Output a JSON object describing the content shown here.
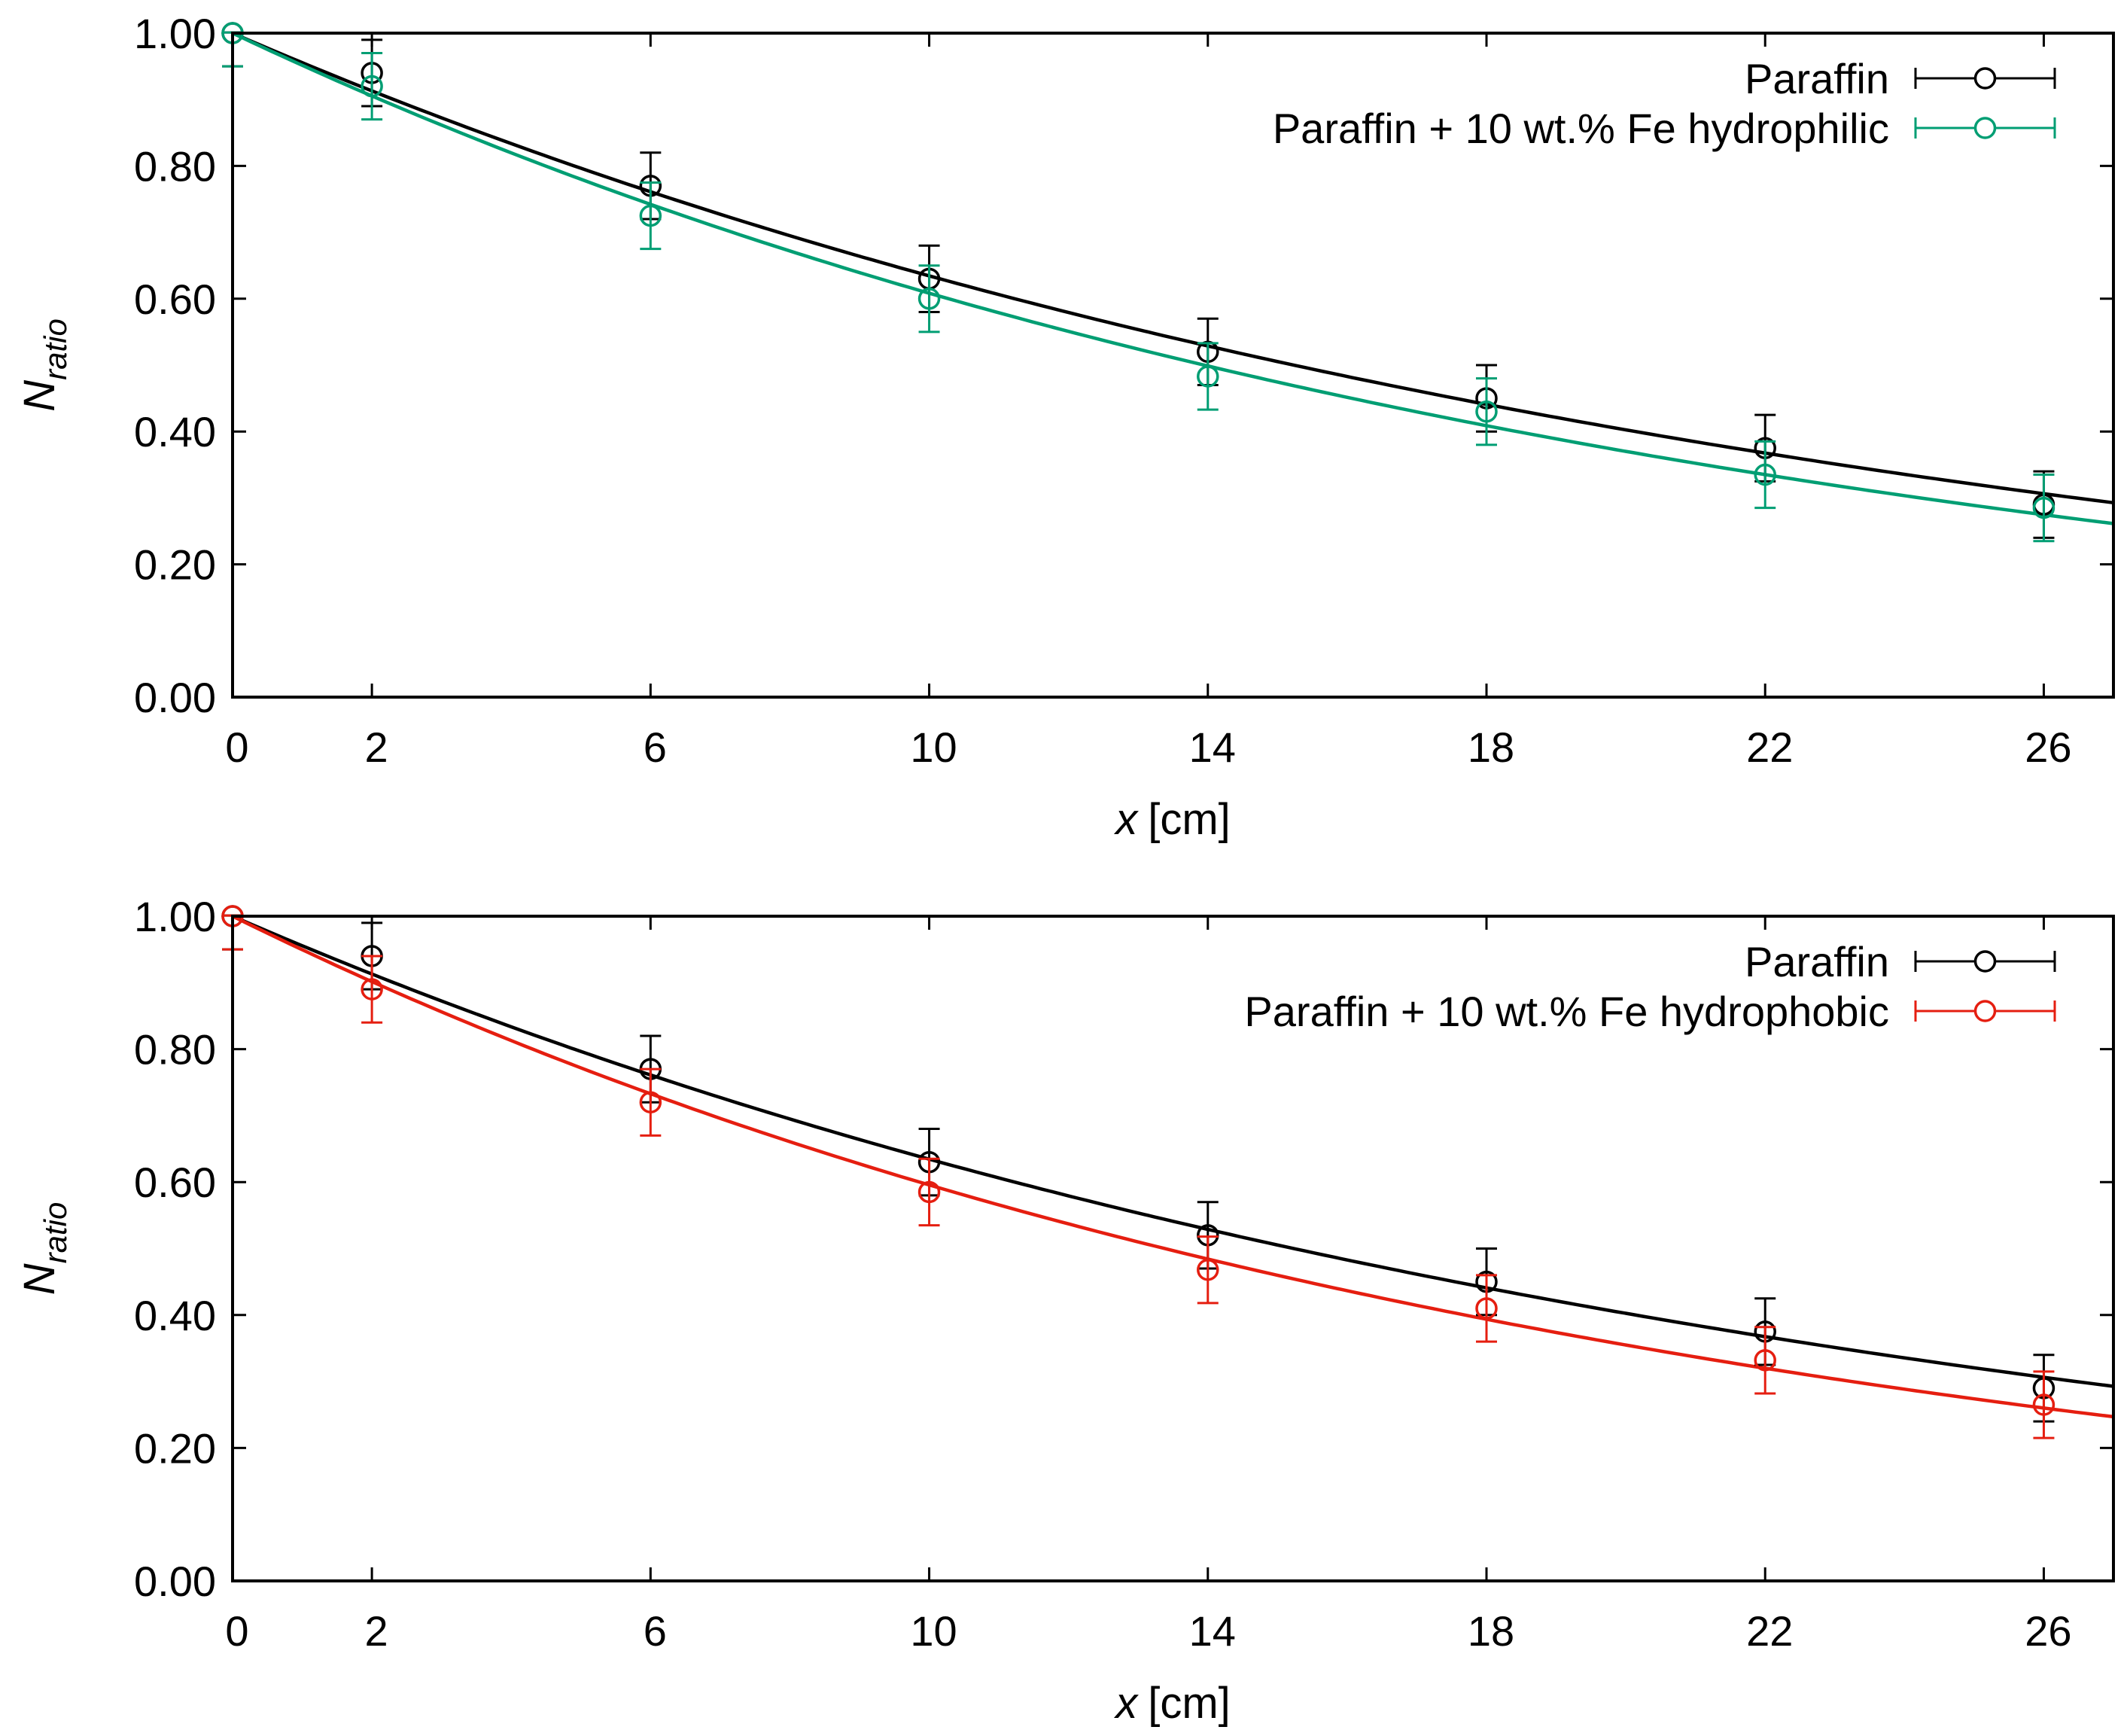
{
  "chart_data": [
    {
      "type": "scatter",
      "panel": "top",
      "xlabel": {
        "var": "x",
        "unit": "[cm]"
      },
      "ylabel": {
        "base": "N",
        "sub": "ratio"
      },
      "xlim": [
        0,
        27
      ],
      "ylim": [
        0,
        1.0
      ],
      "xticks": [
        "0",
        "2",
        "6",
        "10",
        "14",
        "18",
        "22",
        "26"
      ],
      "xtick_values": [
        0,
        2,
        6,
        10,
        14,
        18,
        22,
        26
      ],
      "yticks": [
        "0.00",
        "0.20",
        "0.40",
        "0.60",
        "0.80",
        "1.00"
      ],
      "ytick_values": [
        0,
        0.2,
        0.4,
        0.6,
        0.8,
        1.0
      ],
      "legend_position": "top-right",
      "series": [
        {
          "name": "Paraffin",
          "color": "#000000",
          "x": [
            0,
            2,
            6,
            10,
            14,
            18,
            22,
            26
          ],
          "y": [
            1.0,
            0.94,
            0.77,
            0.63,
            0.52,
            0.45,
            0.375,
            0.29
          ],
          "err": [
            0.05,
            0.05,
            0.05,
            0.05,
            0.05,
            0.05,
            0.05,
            0.05
          ],
          "fit_decay": 0.0455
        },
        {
          "name": "Paraffin + 10 wt.% Fe hydrophilic",
          "color": "#009e73",
          "x": [
            0,
            2,
            6,
            10,
            14,
            18,
            22,
            26
          ],
          "y": [
            1.0,
            0.92,
            0.725,
            0.6,
            0.483,
            0.43,
            0.335,
            0.285
          ],
          "err": [
            0.05,
            0.05,
            0.05,
            0.05,
            0.05,
            0.05,
            0.05,
            0.05
          ],
          "fit_decay": 0.0497
        }
      ]
    },
    {
      "type": "scatter",
      "panel": "bottom",
      "xlabel": {
        "var": "x",
        "unit": "[cm]"
      },
      "ylabel": {
        "base": "N",
        "sub": "ratio"
      },
      "xlim": [
        0,
        27
      ],
      "ylim": [
        0,
        1.0
      ],
      "xticks": [
        "0",
        "2",
        "6",
        "10",
        "14",
        "18",
        "22",
        "26"
      ],
      "xtick_values": [
        0,
        2,
        6,
        10,
        14,
        18,
        22,
        26
      ],
      "yticks": [
        "0.00",
        "0.20",
        "0.40",
        "0.60",
        "0.80",
        "1.00"
      ],
      "ytick_values": [
        0,
        0.2,
        0.4,
        0.6,
        0.8,
        1.0
      ],
      "legend_position": "top-right",
      "series": [
        {
          "name": "Paraffin",
          "color": "#000000",
          "x": [
            0,
            2,
            6,
            10,
            14,
            18,
            22,
            26
          ],
          "y": [
            1.0,
            0.94,
            0.77,
            0.63,
            0.52,
            0.45,
            0.375,
            0.29
          ],
          "err": [
            0.05,
            0.05,
            0.05,
            0.05,
            0.05,
            0.05,
            0.05,
            0.05
          ],
          "fit_decay": 0.0455
        },
        {
          "name": "Paraffin + 10 wt.% Fe hydrophobic",
          "color": "#e51e10",
          "x": [
            0,
            2,
            6,
            10,
            14,
            18,
            22,
            26
          ],
          "y": [
            1.0,
            0.89,
            0.72,
            0.585,
            0.468,
            0.41,
            0.332,
            0.265
          ],
          "err": [
            0.05,
            0.05,
            0.05,
            0.05,
            0.05,
            0.05,
            0.05,
            0.05
          ],
          "fit_decay": 0.0518
        }
      ]
    }
  ]
}
